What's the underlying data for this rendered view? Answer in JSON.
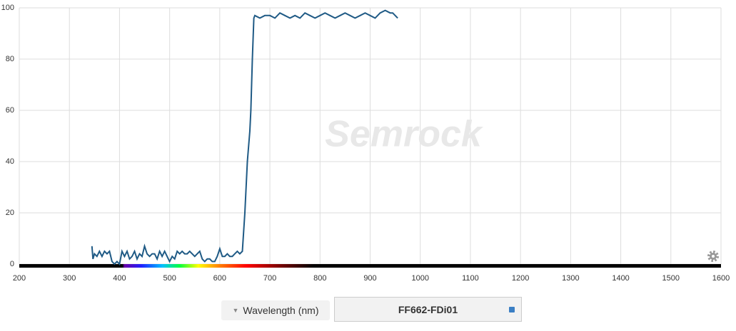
{
  "chart_data": {
    "type": "line",
    "watermark": "Semrock",
    "xlabel": "Wavelength (nm)",
    "x": [
      345,
      347,
      350,
      355,
      360,
      365,
      370,
      375,
      380,
      385,
      390,
      395,
      400,
      405,
      410,
      415,
      420,
      425,
      430,
      435,
      440,
      445,
      450,
      455,
      460,
      465,
      470,
      475,
      480,
      485,
      490,
      495,
      500,
      505,
      510,
      515,
      520,
      525,
      530,
      535,
      540,
      545,
      550,
      555,
      560,
      565,
      570,
      575,
      580,
      585,
      590,
      595,
      600,
      605,
      610,
      615,
      620,
      625,
      630,
      635,
      640,
      645,
      650,
      655,
      660,
      662,
      665,
      668,
      670,
      680,
      690,
      700,
      710,
      720,
      730,
      740,
      750,
      760,
      770,
      780,
      790,
      800,
      810,
      820,
      830,
      840,
      850,
      860,
      870,
      880,
      890,
      900,
      910,
      920,
      930,
      940,
      945,
      950,
      955
    ],
    "series": [
      {
        "name": "FF662-FDi01",
        "color": "#1f5a85",
        "values": [
          7,
          2,
          4,
          3,
          5,
          3,
          5,
          4,
          5,
          1,
          0,
          1,
          0,
          5,
          3,
          5,
          2,
          3,
          5,
          2,
          4,
          3,
          7,
          4,
          3,
          4,
          4,
          2,
          5,
          3,
          5,
          3,
          1,
          3,
          2,
          5,
          4,
          5,
          4,
          4,
          5,
          4,
          3,
          4,
          5,
          2,
          1,
          2,
          2,
          1,
          1,
          3,
          6,
          3,
          3,
          4,
          3,
          3,
          4,
          5,
          4,
          5,
          20,
          40,
          52,
          60,
          80,
          96,
          97,
          96,
          97,
          97,
          96,
          98,
          97,
          96,
          97,
          96,
          98,
          97,
          96,
          97,
          98,
          97,
          96,
          97,
          98,
          97,
          96,
          97,
          98,
          97,
          96,
          98,
          99,
          98,
          98,
          97,
          96
        ]
      }
    ],
    "xlim": [
      200,
      1600
    ],
    "xticks": [
      200,
      300,
      400,
      500,
      600,
      700,
      800,
      900,
      1000,
      1100,
      1200,
      1300,
      1400,
      1500,
      1600
    ],
    "ylim": [
      0,
      100
    ],
    "yticks": [
      0,
      20,
      40,
      60,
      80,
      100
    ],
    "grid": true
  }
}
